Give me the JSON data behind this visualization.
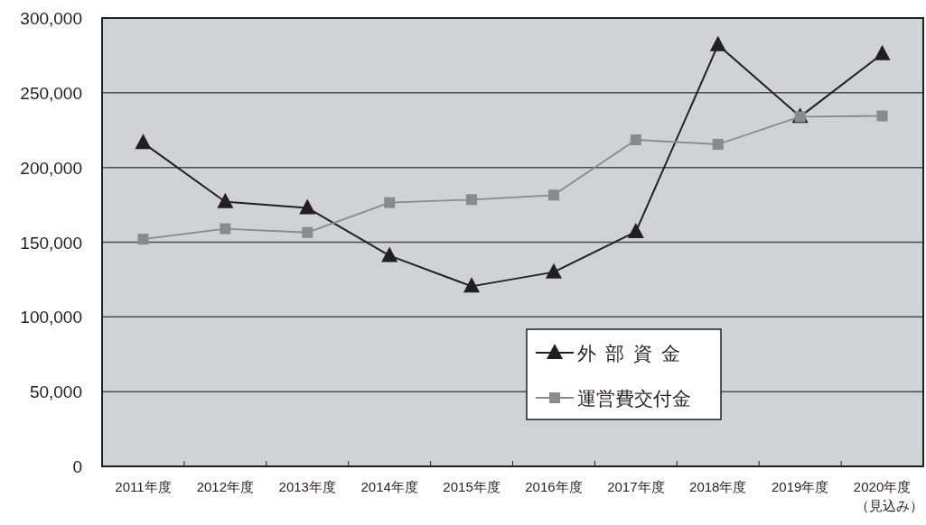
{
  "chart_data": {
    "type": "line",
    "categories": [
      "2011年度",
      "2012年度",
      "2013年度",
      "2014年度",
      "2015年度",
      "2016年度",
      "2017年度",
      "2018年度",
      "2019年度",
      "2020年度（見込み）"
    ],
    "series": [
      {
        "name": "外部資金",
        "color": "#231f20",
        "marker": "triangle",
        "values": [
          216500,
          177000,
          173000,
          141000,
          120500,
          130000,
          157000,
          282000,
          234000,
          276000
        ]
      },
      {
        "name": "運営費交付金",
        "color": "#8a8a8c",
        "marker": "square",
        "values": [
          152000,
          159000,
          156500,
          176500,
          178500,
          181500,
          218500,
          215500,
          234000,
          234500
        ]
      }
    ],
    "ylim": [
      0,
      300000
    ],
    "yticks": [
      {
        "value": 0,
        "label": "0"
      },
      {
        "value": 50000,
        "label": "50,000"
      },
      {
        "value": 100000,
        "label": "100,000"
      },
      {
        "value": 150000,
        "label": "150,000"
      },
      {
        "value": 200000,
        "label": "200,000"
      },
      {
        "value": 250000,
        "label": "250,000"
      },
      {
        "value": 300000,
        "label": "300,000"
      }
    ],
    "grid": "y",
    "legend": "bottom right",
    "line_style": "solid"
  }
}
